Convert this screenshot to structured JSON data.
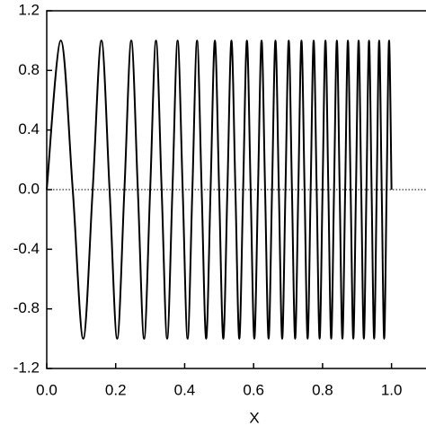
{
  "chart_data": {
    "type": "line",
    "xlabel": "X",
    "x": [
      0,
      0.0409,
      0.0754,
      0.1058,
      0.1333,
      0.1586,
      0.1822,
      0.2043,
      0.2253,
      0.2452,
      0.2642,
      0.2824,
      0.3,
      0.3169,
      0.3333,
      0.3492,
      0.3646,
      0.3796,
      0.3943,
      0.4085,
      0.4224,
      0.436,
      0.4493,
      0.4624,
      0.4752,
      0.4877,
      0.5,
      0.5121,
      0.524,
      0.5357,
      0.5472,
      0.5585,
      0.5696,
      0.5806,
      0.5914,
      0.6021,
      0.6127,
      0.6231,
      0.6333,
      0.6435,
      0.6535,
      0.6634,
      0.6732,
      0.6829,
      0.6924,
      0.7019,
      0.7112,
      0.7205,
      0.7297,
      0.7388,
      0.7478,
      0.7567,
      0.7655,
      0.7742,
      0.7829,
      0.7915,
      0.8,
      0.8084,
      0.8168,
      0.8251,
      0.8333,
      0.8415,
      0.8496,
      0.8576,
      0.8656,
      0.8735,
      0.8814,
      0.8892,
      0.8969,
      0.9046,
      0.9122,
      0.9198,
      0.9273,
      0.9348,
      0.9422,
      0.9496,
      0.957,
      0.9642,
      0.9715,
      0.9787,
      0.9858,
      0.9929,
      1.0
    ],
    "values": [
      0,
      1,
      0,
      -1,
      0,
      1,
      0,
      -1,
      0,
      1,
      0,
      -1,
      0,
      1,
      0,
      -1,
      0,
      1,
      0,
      -1,
      0,
      1,
      0,
      -1,
      0,
      1,
      0,
      -1,
      0,
      1,
      0,
      -1,
      0,
      1,
      0,
      -1,
      0,
      1,
      0,
      -1,
      0,
      1,
      0,
      -1,
      0,
      1,
      0,
      -1,
      0,
      1,
      0,
      -1,
      0,
      1,
      0,
      -1,
      0,
      1,
      0,
      -1,
      0,
      1,
      0,
      -1,
      0,
      1,
      0,
      -1,
      0,
      1,
      0,
      -1,
      0,
      1,
      0,
      -1,
      0,
      1,
      0,
      -1,
      0,
      1,
      0
    ],
    "color": "#000000",
    "xlim": [
      0,
      1.1
    ],
    "xticks": [
      {
        "value": 0,
        "label": "0.0"
      },
      0.2,
      0.4,
      0.6,
      0.8,
      {
        "value": 1,
        "label": "1.0"
      }
    ],
    "ylim": [
      -1.2,
      1.2
    ],
    "yticks": [
      -1.2,
      -0.8,
      -0.4,
      {
        "value": 0,
        "label": "0.0"
      },
      0.4,
      0.8,
      1.2
    ],
    "grid": false
  }
}
